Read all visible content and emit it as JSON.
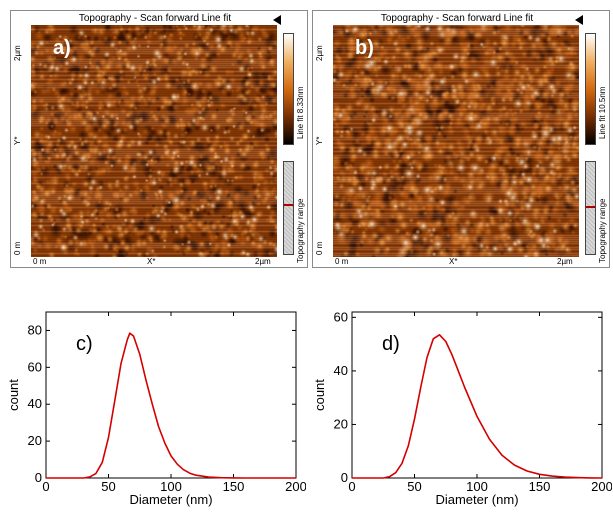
{
  "panels": [
    {
      "title": "Topography - Scan forward   Line fit",
      "letter": "a)",
      "colorbar_label": "Line fit 8.33nm",
      "range_label": "Topography range",
      "y_top": "2µm",
      "y_mid": "Y*",
      "y_bottom": "0 m",
      "x_left": "0 m",
      "x_mid": "X*",
      "x_right": "2µm"
    },
    {
      "title": "Topography - Scan forward   Line fit",
      "letter": "b)",
      "colorbar_label": "Line fit 10.5nm",
      "range_label": "Topography range",
      "y_top": "2µm",
      "y_mid": "Y*",
      "y_bottom": "0 m",
      "x_left": "0 m",
      "x_mid": "X*",
      "x_right": "2µm"
    }
  ],
  "chart_data": [
    {
      "type": "line",
      "letter": "c)",
      "xlabel": "Diameter (nm)",
      "ylabel": "count",
      "xlim": [
        0,
        200
      ],
      "ylim": [
        0,
        90
      ],
      "xticks": [
        0,
        50,
        100,
        150,
        200
      ],
      "yticks": [
        0,
        20,
        40,
        60,
        80
      ],
      "color": "#d40000",
      "series": [
        {
          "x": [
            30,
            35,
            40,
            45,
            50,
            55,
            60,
            65,
            67,
            70,
            75,
            80,
            85,
            90,
            95,
            100,
            105,
            110,
            115,
            120,
            130,
            140,
            150,
            160
          ],
          "values": [
            0,
            0.6,
            2.5,
            8.5,
            22,
            42,
            62,
            75,
            78.5,
            77,
            67,
            53,
            40,
            28,
            19,
            12,
            7.5,
            4.5,
            2.6,
            1.5,
            0.5,
            0.15,
            0.05,
            0
          ]
        }
      ]
    },
    {
      "type": "line",
      "letter": "d)",
      "xlabel": "Diameter (nm)",
      "ylabel": "count",
      "xlim": [
        0,
        200
      ],
      "ylim": [
        0,
        62
      ],
      "xticks": [
        0,
        50,
        100,
        150,
        200
      ],
      "yticks": [
        0,
        20,
        40,
        60
      ],
      "color": "#d40000",
      "series": [
        {
          "x": [
            25,
            30,
            35,
            40,
            45,
            50,
            55,
            60,
            65,
            70,
            75,
            80,
            85,
            90,
            100,
            110,
            120,
            130,
            140,
            150,
            160,
            170,
            180,
            190
          ],
          "values": [
            0,
            0.5,
            2,
            5.5,
            12,
            22,
            34,
            45,
            52,
            53.5,
            51,
            46,
            40,
            34,
            23,
            14.5,
            8.5,
            4.8,
            2.6,
            1.4,
            0.7,
            0.35,
            0.15,
            0.05
          ]
        }
      ]
    }
  ]
}
